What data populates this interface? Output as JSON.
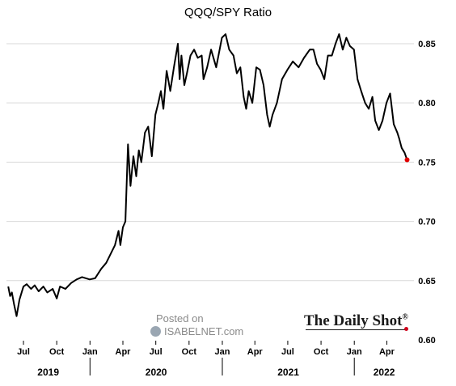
{
  "watermark": {
    "posted": "Posted on",
    "site": "ISABELNET.com",
    "logo_icon": "isabelnet-logo"
  },
  "brand": {
    "text": "The Daily Shot",
    "mark": "®",
    "accent": "#d0021b"
  },
  "colors": {
    "line": "#000000",
    "last_point": "#e00000",
    "grid": "#d9d9d9"
  },
  "chart_data": {
    "type": "line",
    "title": "QQQ/SPY Ratio",
    "xlabel": "",
    "ylabel": "",
    "y_axis_side": "right",
    "ylim": [
      0.6,
      0.865
    ],
    "yticks": [
      0.6,
      0.65,
      0.7,
      0.75,
      0.8,
      0.85
    ],
    "ytick_labels": [
      "0.60",
      "0.65",
      "0.70",
      "0.75",
      "0.80",
      "0.85"
    ],
    "grid": true,
    "xlim": [
      "2019-05-15",
      "2022-06-15"
    ],
    "month_ticks": [
      {
        "date": "2019-07-01",
        "label": "Jul"
      },
      {
        "date": "2019-10-01",
        "label": "Oct"
      },
      {
        "date": "2020-01-01",
        "label": "Jan"
      },
      {
        "date": "2020-04-01",
        "label": "Apr"
      },
      {
        "date": "2020-07-01",
        "label": "Jul"
      },
      {
        "date": "2020-10-01",
        "label": "Oct"
      },
      {
        "date": "2021-01-01",
        "label": "Jan"
      },
      {
        "date": "2021-04-01",
        "label": "Apr"
      },
      {
        "date": "2021-07-01",
        "label": "Jul"
      },
      {
        "date": "2021-10-01",
        "label": "Oct"
      },
      {
        "date": "2022-01-01",
        "label": "Jan"
      },
      {
        "date": "2022-04-01",
        "label": "Apr"
      }
    ],
    "year_labels": [
      "2019",
      "2020",
      "2021",
      "2022"
    ],
    "year_separators": [
      "2020-01-01",
      "2021-01-01",
      "2022-01-01"
    ],
    "series": [
      {
        "highlight_last": true,
        "x": [
          "2019-05-20",
          "2019-05-25",
          "2019-05-30",
          "2019-06-05",
          "2019-06-12",
          "2019-06-20",
          "2019-07-01",
          "2019-07-10",
          "2019-07-22",
          "2019-08-01",
          "2019-08-12",
          "2019-08-25",
          "2019-09-05",
          "2019-09-20",
          "2019-10-01",
          "2019-10-10",
          "2019-10-25",
          "2019-11-10",
          "2019-11-25",
          "2019-12-10",
          "2019-12-31",
          "2020-01-15",
          "2020-02-01",
          "2020-02-15",
          "2020-02-28",
          "2020-03-10",
          "2020-03-20",
          "2020-03-25",
          "2020-04-01",
          "2020-04-08",
          "2020-04-15",
          "2020-04-22",
          "2020-04-30",
          "2020-05-08",
          "2020-05-15",
          "2020-05-22",
          "2020-06-01",
          "2020-06-10",
          "2020-06-20",
          "2020-06-30",
          "2020-07-08",
          "2020-07-15",
          "2020-07-22",
          "2020-07-31",
          "2020-08-10",
          "2020-08-20",
          "2020-08-31",
          "2020-09-05",
          "2020-09-10",
          "2020-09-18",
          "2020-09-25",
          "2020-10-05",
          "2020-10-15",
          "2020-10-25",
          "2020-11-05",
          "2020-11-10",
          "2020-11-20",
          "2020-12-01",
          "2020-12-15",
          "2020-12-31",
          "2021-01-10",
          "2021-01-20",
          "2021-02-01",
          "2021-02-10",
          "2021-02-20",
          "2021-03-01",
          "2021-03-08",
          "2021-03-15",
          "2021-03-25",
          "2021-04-05",
          "2021-04-15",
          "2021-04-25",
          "2021-05-05",
          "2021-05-12",
          "2021-05-20",
          "2021-06-01",
          "2021-06-15",
          "2021-06-30",
          "2021-07-15",
          "2021-07-31",
          "2021-08-15",
          "2021-08-31",
          "2021-09-10",
          "2021-09-20",
          "2021-09-30",
          "2021-10-10",
          "2021-10-20",
          "2021-10-31",
          "2021-11-10",
          "2021-11-20",
          "2021-11-30",
          "2021-12-10",
          "2021-12-20",
          "2021-12-31",
          "2022-01-10",
          "2022-01-20",
          "2022-01-31",
          "2022-02-10",
          "2022-02-20",
          "2022-02-28",
          "2022-03-10",
          "2022-03-20",
          "2022-03-31",
          "2022-04-10",
          "2022-04-20",
          "2022-04-30",
          "2022-05-05",
          "2022-05-12",
          "2022-05-20",
          "2022-05-27"
        ],
        "values": [
          0.645,
          0.637,
          0.64,
          0.63,
          0.62,
          0.634,
          0.645,
          0.647,
          0.643,
          0.646,
          0.641,
          0.645,
          0.64,
          0.643,
          0.635,
          0.645,
          0.643,
          0.648,
          0.651,
          0.653,
          0.651,
          0.652,
          0.66,
          0.665,
          0.673,
          0.68,
          0.692,
          0.68,
          0.695,
          0.7,
          0.765,
          0.73,
          0.755,
          0.738,
          0.76,
          0.75,
          0.775,
          0.78,
          0.755,
          0.79,
          0.8,
          0.81,
          0.795,
          0.827,
          0.81,
          0.83,
          0.85,
          0.82,
          0.84,
          0.815,
          0.825,
          0.84,
          0.845,
          0.838,
          0.84,
          0.82,
          0.83,
          0.845,
          0.83,
          0.855,
          0.858,
          0.845,
          0.84,
          0.825,
          0.83,
          0.805,
          0.795,
          0.81,
          0.8,
          0.83,
          0.828,
          0.815,
          0.79,
          0.78,
          0.79,
          0.8,
          0.82,
          0.828,
          0.835,
          0.83,
          0.838,
          0.845,
          0.845,
          0.833,
          0.828,
          0.82,
          0.84,
          0.84,
          0.85,
          0.858,
          0.845,
          0.855,
          0.848,
          0.845,
          0.82,
          0.81,
          0.8,
          0.795,
          0.805,
          0.785,
          0.777,
          0.785,
          0.8,
          0.808,
          0.782,
          0.775,
          0.77,
          0.762,
          0.758,
          0.752
        ]
      }
    ]
  }
}
